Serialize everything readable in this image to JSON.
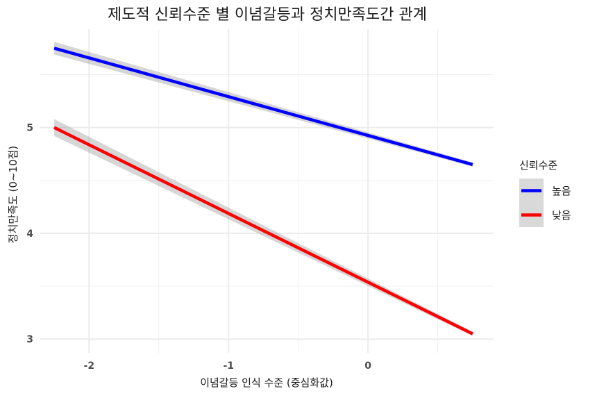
{
  "chart_data": {
    "type": "line",
    "title": "제도적 신뢰수준 별 이념갈등과 정치만족도간 관계",
    "xlabel": "이념갈등 인식 수준 (중심화값)",
    "ylabel": "정치만족도 (0~10점)",
    "xlim": [
      -2.35,
      0.9
    ],
    "ylim": [
      2.87,
      5.93
    ],
    "x_ticks": [
      -2,
      -1,
      0
    ],
    "x_tick_labels": [
      "-2",
      "-1",
      "0"
    ],
    "y_ticks": [
      3,
      4,
      5
    ],
    "y_tick_labels": [
      "3",
      "4",
      "5"
    ],
    "grid": true,
    "legend": {
      "title": "신뢰수준",
      "position": "right"
    },
    "series": [
      {
        "name": "높음",
        "color": "#0000ff",
        "x": [
          -2.25,
          0.75
        ],
        "y": [
          5.75,
          4.65
        ],
        "ci_halfwidth": [
          0.06,
          0.02
        ]
      },
      {
        "name": "낮음",
        "color": "#ff0000",
        "x": [
          -2.25,
          0.75
        ],
        "y": [
          5.0,
          3.05
        ],
        "ci_halfwidth": [
          0.08,
          0.02
        ]
      }
    ]
  }
}
